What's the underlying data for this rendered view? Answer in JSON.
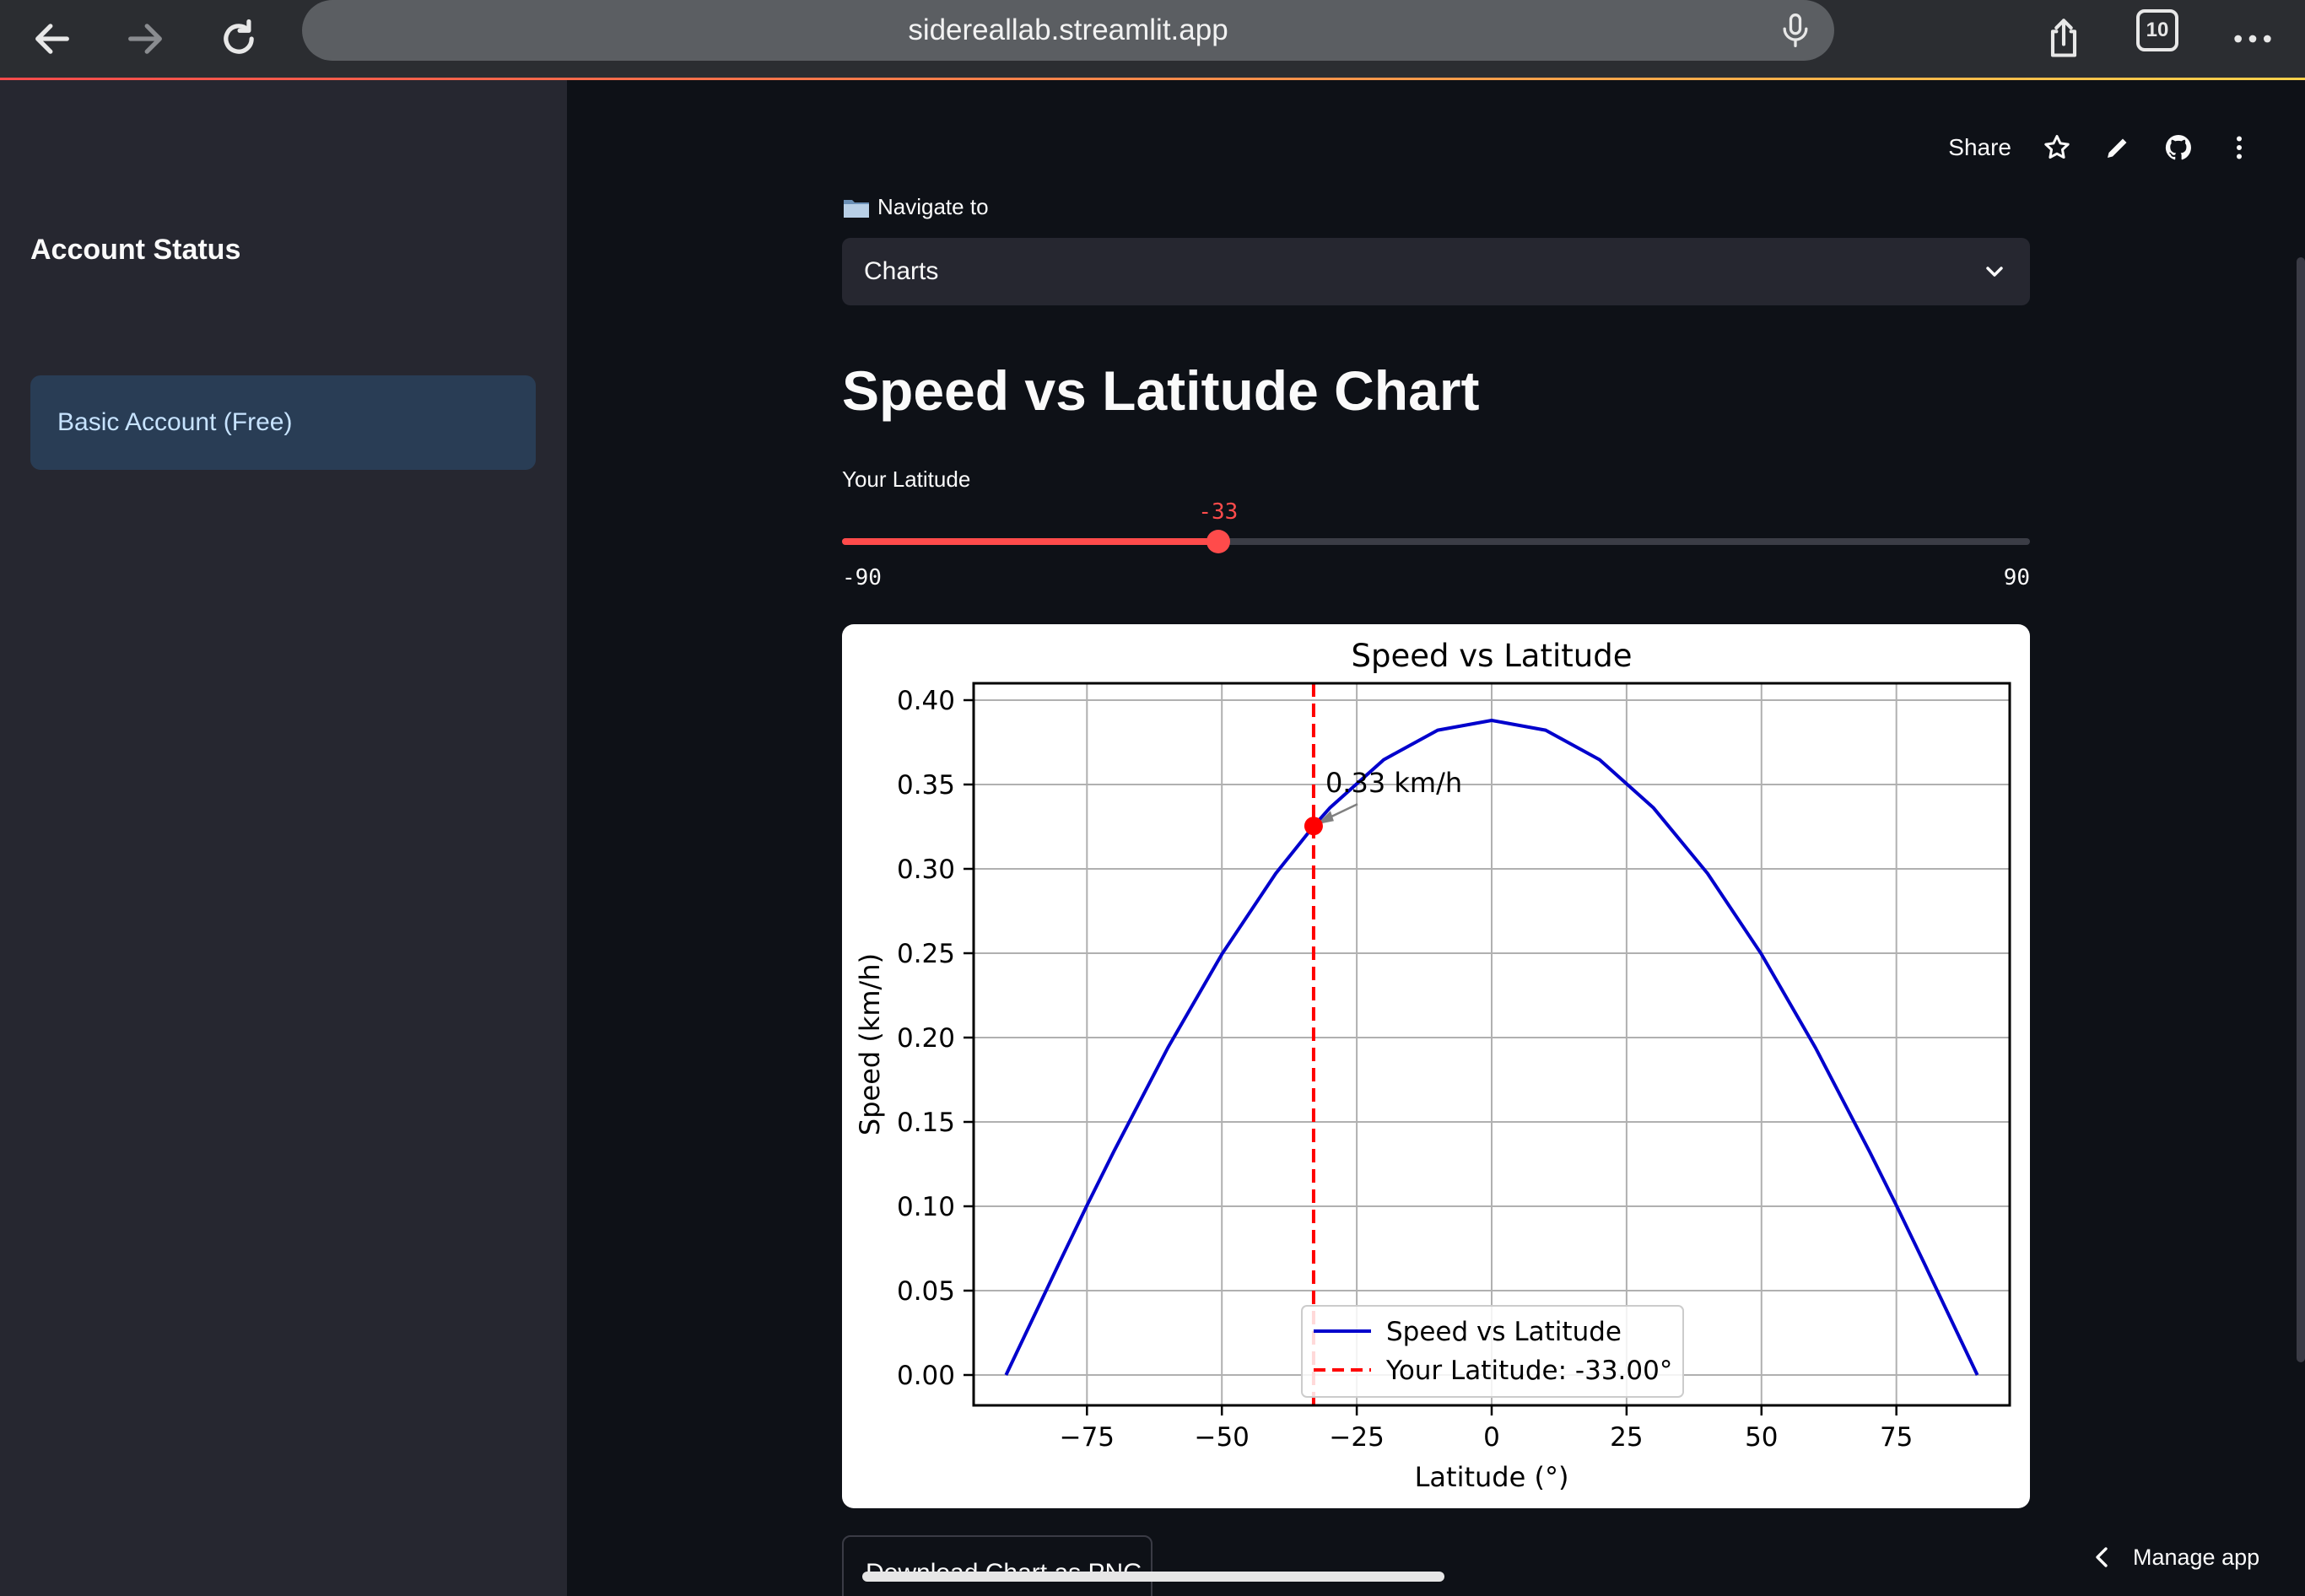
{
  "browser": {
    "url": "sidereallab.streamlit.app",
    "tab_count": "10"
  },
  "sidebar": {
    "title": "Account Status",
    "account_label": "Basic Account (Free)"
  },
  "toolbar": {
    "share_label": "Share"
  },
  "navigation": {
    "label": "Navigate to",
    "selected": "Charts"
  },
  "page": {
    "title": "Speed vs Latitude Chart"
  },
  "slider": {
    "label": "Your Latitude",
    "min": -90,
    "max": 90,
    "value": -33,
    "min_label": "-90",
    "max_label": "90",
    "value_label": "-33"
  },
  "download": {
    "label": "Download Chart as PNG"
  },
  "footer": {
    "manage_app_label": "Manage app"
  },
  "colors": {
    "accent": "#ff4b4b",
    "line": "#0000cc",
    "marker": "#ff0000"
  },
  "chart_data": {
    "type": "line",
    "title": "Speed vs Latitude",
    "xlabel": "Latitude (°)",
    "ylabel": "Speed (km/h)",
    "xlim": [
      -96,
      96
    ],
    "ylim": [
      -0.018,
      0.41
    ],
    "xticks": [
      -75,
      -50,
      -25,
      0,
      25,
      50,
      75
    ],
    "xtick_labels": [
      "−75",
      "−50",
      "−25",
      "0",
      "25",
      "50",
      "75"
    ],
    "yticks": [
      0.0,
      0.05,
      0.1,
      0.15,
      0.2,
      0.25,
      0.3,
      0.35,
      0.4
    ],
    "ytick_labels": [
      "0.00",
      "0.05",
      "0.10",
      "0.15",
      "0.20",
      "0.25",
      "0.30",
      "0.35",
      "0.40"
    ],
    "grid": true,
    "legend_position": "lower-center",
    "series": [
      {
        "name": "Speed vs Latitude",
        "style": "solid",
        "color": "#0000cc",
        "x": [
          -90,
          -80,
          -75,
          -70,
          -60,
          -50,
          -40,
          -33,
          -30,
          -20,
          -10,
          0,
          10,
          20,
          30,
          40,
          50,
          60,
          70,
          75,
          80,
          90
        ],
        "y": [
          0.0,
          0.0673,
          0.1005,
          0.1326,
          0.194,
          0.2494,
          0.2973,
          0.3253,
          0.3361,
          0.3647,
          0.3822,
          0.388,
          0.3822,
          0.3647,
          0.3361,
          0.2973,
          0.2494,
          0.194,
          0.1326,
          0.1005,
          0.0673,
          0.0
        ]
      },
      {
        "name": "Your Latitude: -33.00°",
        "style": "dashed",
        "color": "#ff0000",
        "x": [
          -33,
          -33
        ],
        "y": [
          -0.018,
          0.41
        ]
      }
    ],
    "marker": {
      "x": -33,
      "y": 0.3254
    },
    "annotation": {
      "text": "0.33 km/h",
      "x": -33,
      "y": 0.3254
    }
  }
}
